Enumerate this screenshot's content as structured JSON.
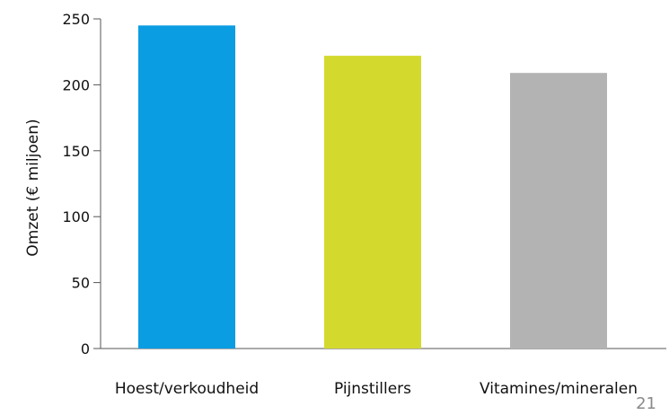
{
  "chart_data": {
    "type": "bar",
    "categories": [
      "Hoest/verkoudheid",
      "Pijnstillers",
      "Vitamines/mineralen"
    ],
    "values": [
      245,
      222,
      209
    ],
    "colors": [
      "#0a9de2",
      "#d4d92e",
      "#b3b3b3"
    ],
    "title": "",
    "xlabel": "",
    "ylabel": "Omzet (€ miljoen)",
    "ylim": [
      0,
      250
    ],
    "yticks": [
      0,
      50,
      100,
      150,
      200,
      250
    ],
    "grid": false
  },
  "page_number": "21"
}
